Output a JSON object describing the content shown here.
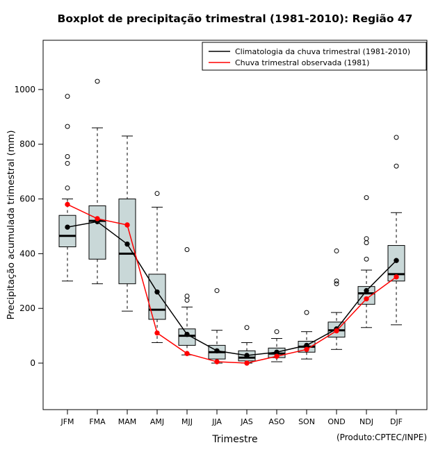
{
  "title": "Boxplot de precipitação trimestral (1981-2010): Região 47",
  "xlabel": "Trimestre",
  "ylabel": "Precipitação acumulada trimestral (mm)",
  "footnote": "(Produto:CPTEC/INPE)",
  "colors": {
    "box_fill": "#c9d8d8",
    "box_stroke": "#000000",
    "frame": "#000000",
    "climatologia": "#000000",
    "observada": "#ff0000"
  },
  "chart_data": {
    "type": "boxplot",
    "title": "Boxplot de precipitação trimestral (1981-2010): Região 47",
    "xlabel": "Trimestre",
    "ylabel": "Precipitação acumulada trimestral (mm)",
    "categories": [
      "JFM",
      "FMA",
      "MAM",
      "AMJ",
      "MJJ",
      "JJA",
      "JAS",
      "ASO",
      "SON",
      "OND",
      "NDJ",
      "DJF"
    ],
    "yticks": [
      0,
      200,
      400,
      600,
      800,
      1000
    ],
    "ylim": [
      -170,
      1180
    ],
    "legend_position": "top-right",
    "grid": false,
    "boxes": [
      {
        "low": 300,
        "q1": 425,
        "median": 465,
        "q3": 540,
        "high": 600,
        "outliers": [
          640,
          730,
          755,
          865,
          975
        ]
      },
      {
        "low": 290,
        "q1": 380,
        "median": 520,
        "q3": 575,
        "high": 860,
        "outliers": [
          1030
        ]
      },
      {
        "low": 190,
        "q1": 290,
        "median": 400,
        "q3": 600,
        "high": 830,
        "outliers": []
      },
      {
        "low": 75,
        "q1": 160,
        "median": 195,
        "q3": 325,
        "high": 570,
        "outliers": [
          620
        ]
      },
      {
        "low": 30,
        "q1": 65,
        "median": 100,
        "q3": 125,
        "high": 205,
        "outliers": [
          230,
          245,
          415
        ]
      },
      {
        "low": 0,
        "q1": 15,
        "median": 40,
        "q3": 65,
        "high": 120,
        "outliers": [
          265
        ]
      },
      {
        "low": 0,
        "q1": 8,
        "median": 20,
        "q3": 45,
        "high": 75,
        "outliers": [
          130
        ]
      },
      {
        "low": 5,
        "q1": 20,
        "median": 35,
        "q3": 55,
        "high": 90,
        "outliers": [
          115
        ]
      },
      {
        "low": 15,
        "q1": 40,
        "median": 60,
        "q3": 80,
        "high": 115,
        "outliers": [
          185
        ]
      },
      {
        "low": 50,
        "q1": 95,
        "median": 120,
        "q3": 150,
        "high": 185,
        "outliers": [
          290,
          300,
          410
        ]
      },
      {
        "low": 130,
        "q1": 215,
        "median": 255,
        "q3": 280,
        "high": 340,
        "outliers": [
          380,
          440,
          455,
          605
        ]
      },
      {
        "low": 140,
        "q1": 300,
        "median": 325,
        "q3": 430,
        "high": 550,
        "outliers": [
          720,
          825
        ]
      }
    ],
    "series": [
      {
        "name": "Climatologia da chuva trimestral (1981-2010)",
        "color": "#000000",
        "values": [
          497,
          517,
          435,
          260,
          105,
          45,
          28,
          40,
          65,
          125,
          265,
          375
        ]
      },
      {
        "name": "Chuva trimestral observada (1981)",
        "color": "#ff0000",
        "values": [
          580,
          528,
          505,
          110,
          35,
          5,
          0,
          25,
          50,
          118,
          235,
          315
        ]
      }
    ]
  }
}
